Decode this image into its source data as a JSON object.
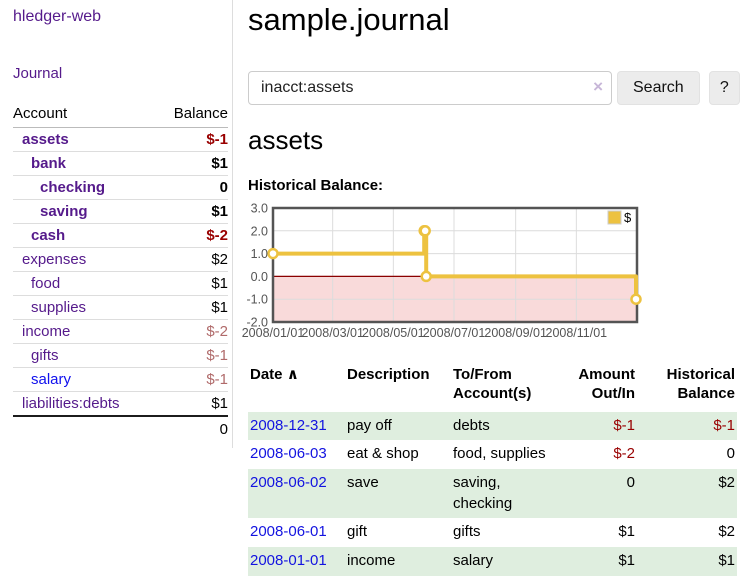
{
  "colors": {
    "link_purple": "#551a8b",
    "link_blue": "#1111ee",
    "negative_red": "#990000",
    "dim_negative_red": "#b06a6a",
    "row_stripe_green": "#dfeedf",
    "chart_gold": "#edc240",
    "chart_negative_region_pink": "#f9dada",
    "chart_zero_line": "#8b0000",
    "chart_border": "#545454"
  },
  "sidebar": {
    "app_title": "hledger-web",
    "nav": {
      "journal": "Journal"
    },
    "accounts": {
      "col_account": "Account",
      "col_balance": "Balance",
      "rows": [
        {
          "name": "assets",
          "balance": "$-1",
          "depth": 1,
          "bold": true,
          "name_color": "purple",
          "balance_color": "negative"
        },
        {
          "name": "bank",
          "balance": "$1",
          "depth": 2,
          "bold": true,
          "name_color": "purple",
          "balance_color": "normal"
        },
        {
          "name": "checking",
          "balance": "0",
          "depth": 3,
          "bold": true,
          "name_color": "purple",
          "balance_color": "normal"
        },
        {
          "name": "saving",
          "balance": "$1",
          "depth": 3,
          "bold": true,
          "name_color": "purple",
          "balance_color": "normal"
        },
        {
          "name": "cash",
          "balance": "$-2",
          "depth": 2,
          "bold": true,
          "name_color": "purple",
          "balance_color": "negative"
        },
        {
          "name": "expenses",
          "balance": "$2",
          "depth": 1,
          "bold": false,
          "name_color": "purple",
          "balance_color": "normal"
        },
        {
          "name": "food",
          "balance": "$1",
          "depth": 2,
          "bold": false,
          "name_color": "purple",
          "balance_color": "normal"
        },
        {
          "name": "supplies",
          "balance": "$1",
          "depth": 2,
          "bold": false,
          "name_color": "purple",
          "balance_color": "normal"
        },
        {
          "name": "income",
          "balance": "$-2",
          "depth": 1,
          "bold": false,
          "name_color": "purple",
          "balance_color": "dim"
        },
        {
          "name": "gifts",
          "balance": "$-1",
          "depth": 2,
          "bold": false,
          "name_color": "purple",
          "balance_color": "dim"
        },
        {
          "name": "salary",
          "balance": "$-1",
          "depth": 2,
          "bold": false,
          "name_color": "blue",
          "balance_color": "dim"
        },
        {
          "name": "liabilities:debts",
          "balance": "$1",
          "depth": 1,
          "bold": false,
          "name_color": "purple",
          "balance_color": "normal"
        }
      ],
      "total": "0"
    }
  },
  "main": {
    "title": "sample.journal",
    "search": {
      "value": "inacct:assets",
      "clear_icon": "×",
      "search_button": "Search",
      "help_button": "?"
    },
    "account_heading": "assets",
    "chart_heading": "Historical Balance:"
  },
  "chart_data": {
    "type": "line",
    "step": true,
    "title": "Historical Balance:",
    "series": [
      {
        "name": "$",
        "color": "#edc240",
        "points": [
          [
            "2008-01-01",
            1
          ],
          [
            "2008-06-01",
            2
          ],
          [
            "2008-06-02",
            2
          ],
          [
            "2008-06-03",
            0
          ],
          [
            "2008-12-31",
            -1
          ]
        ]
      }
    ],
    "x_ticks": [
      "2008/01/01",
      "2008/03/01",
      "2008/05/01",
      "2008/07/01",
      "2008/09/01",
      "2008/11/01"
    ],
    "y_ticks": [
      "3.0",
      "2.0",
      "1.0",
      "0.0",
      "-1.0",
      "-2.0"
    ],
    "ylim": [
      -2,
      3
    ],
    "xlim_days": 366,
    "grid": true,
    "negative_region": true,
    "legend": {
      "label": "$",
      "position": "top-right"
    }
  },
  "register": {
    "headers": {
      "date": "Date",
      "sort_icon": "∧",
      "description": "Description",
      "account": "To/From\nAccount(s)",
      "amount": "Amount\nOut/In",
      "balance": "Historical\nBalance"
    },
    "rows": [
      {
        "date": "2008-12-31",
        "description": "pay off",
        "accounts": "debts",
        "amount": "$-1",
        "amount_negative": true,
        "balance": "$-1",
        "balance_negative": true
      },
      {
        "date": "2008-06-03",
        "description": "eat & shop",
        "accounts": "food, supplies",
        "amount": "$-2",
        "amount_negative": true,
        "balance": "0",
        "balance_negative": false
      },
      {
        "date": "2008-06-02",
        "description": "save",
        "accounts": "saving,\nchecking",
        "amount": "0",
        "amount_negative": false,
        "balance": "$2",
        "balance_negative": false
      },
      {
        "date": "2008-06-01",
        "description": "gift",
        "accounts": "gifts",
        "amount": "$1",
        "amount_negative": false,
        "balance": "$2",
        "balance_negative": false
      },
      {
        "date": "2008-01-01",
        "description": "income",
        "accounts": "salary",
        "amount": "$1",
        "amount_negative": false,
        "balance": "$1",
        "balance_negative": false
      }
    ]
  }
}
